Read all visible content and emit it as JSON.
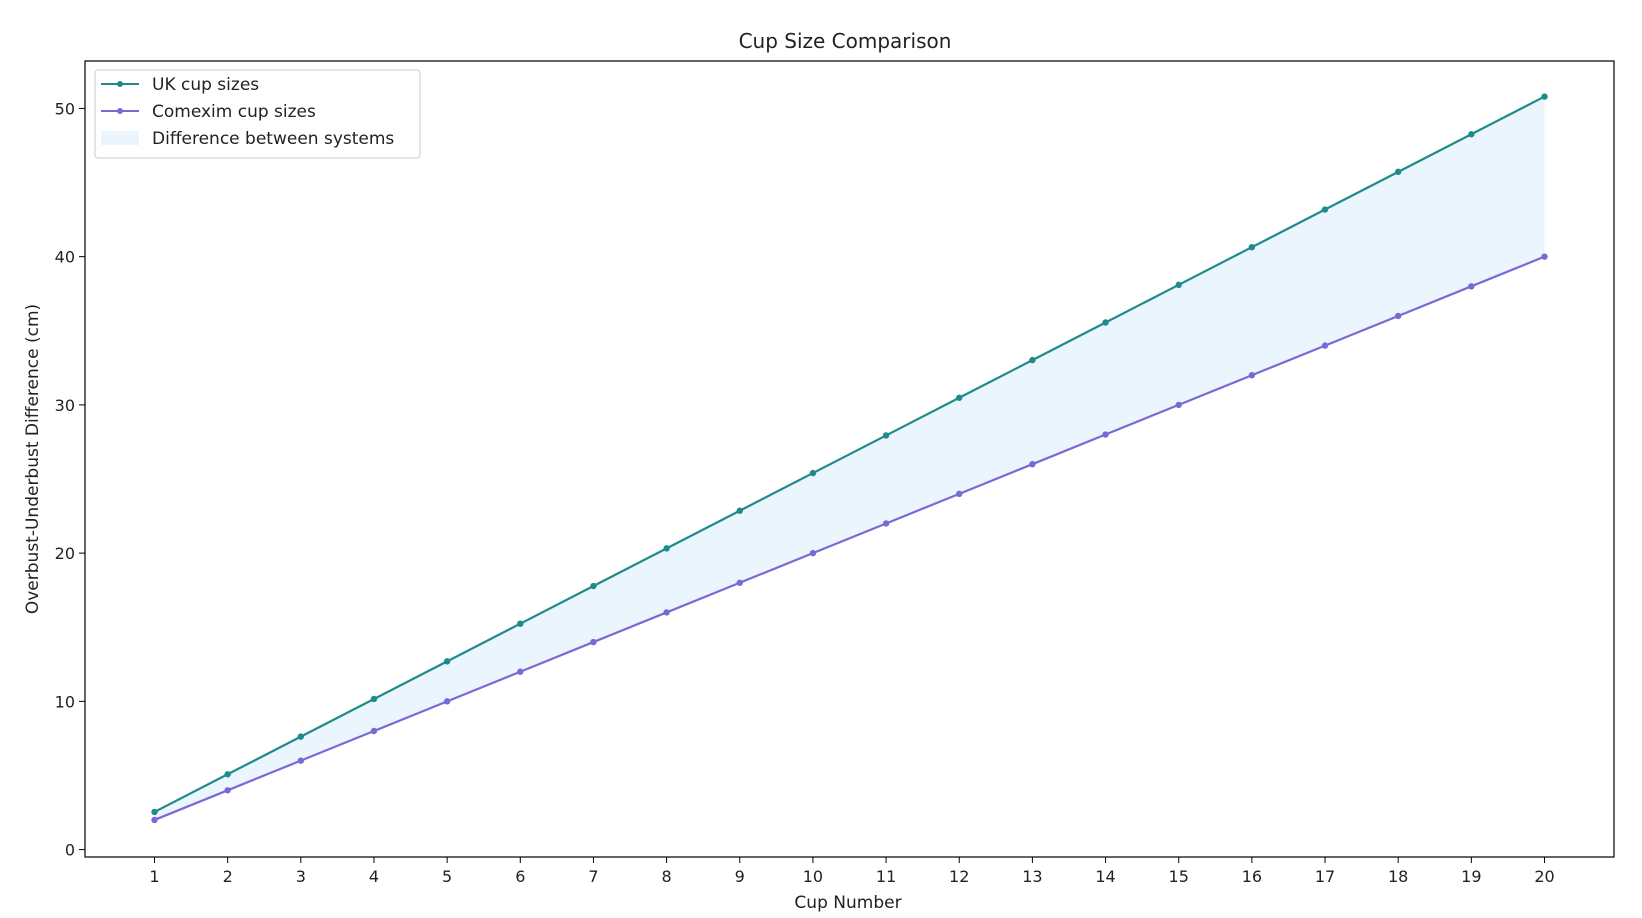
{
  "chart_data": {
    "type": "line",
    "title": "Cup Size Comparison",
    "xlabel": "Cup Number",
    "ylabel": "Overbust-Underbust Difference (cm)",
    "x": [
      1,
      2,
      3,
      4,
      5,
      6,
      7,
      8,
      9,
      10,
      11,
      12,
      13,
      14,
      15,
      16,
      17,
      18,
      19,
      20
    ],
    "xlim": [
      0.05,
      20.95
    ],
    "ylim": [
      -0.5,
      53.2
    ],
    "yticks": [
      0,
      10,
      20,
      30,
      40,
      50
    ],
    "grid": false,
    "legend_position": "top-left",
    "series": [
      {
        "name": "UK cup sizes",
        "color": "#1f8a8a",
        "values": [
          2.54,
          5.08,
          7.62,
          10.16,
          12.7,
          15.24,
          17.78,
          20.32,
          22.86,
          25.4,
          27.94,
          30.48,
          33.02,
          35.56,
          38.1,
          40.64,
          43.18,
          45.72,
          48.26,
          50.8
        ]
      },
      {
        "name": "Comexim cup sizes",
        "color": "#7b68d6",
        "values": [
          2,
          4,
          6,
          8,
          10,
          12,
          14,
          16,
          18,
          20,
          22,
          24,
          26,
          28,
          30,
          32,
          34,
          36,
          38,
          40
        ]
      }
    ],
    "fill_between": {
      "name": "Difference between systems",
      "color": "#eaf5fd"
    }
  }
}
